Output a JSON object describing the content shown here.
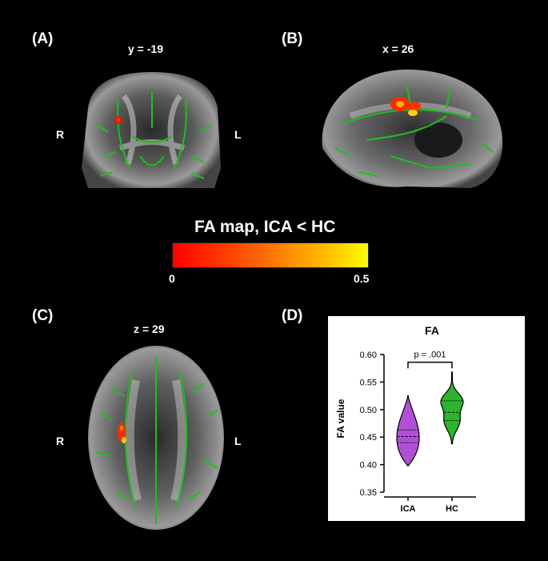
{
  "panels": {
    "a": {
      "label": "(A)",
      "slice": "y = -19",
      "left": "R",
      "right": "L"
    },
    "b": {
      "label": "(B)",
      "slice": "x = 26"
    },
    "c": {
      "label": "(C)",
      "slice": "z = 29",
      "left": "R",
      "right": "L"
    },
    "d": {
      "label": "(D)"
    }
  },
  "colorbar": {
    "title": "FA map, ICA < HC",
    "min": "0",
    "max": "0.5",
    "colors": [
      "#ff0000",
      "#ff5a00",
      "#ffc000",
      "#ffff00"
    ]
  },
  "colors": {
    "tract": "#19c219",
    "ica": "#b14fd8",
    "hc": "#2cb52c"
  },
  "chart_data": {
    "type": "violin",
    "title": "FA",
    "ylabel": "FA value",
    "xlabel": "",
    "categories": [
      "ICA",
      "HC"
    ],
    "ylim": [
      0.35,
      0.6
    ],
    "yticks": [
      "0.35",
      "0.40",
      "0.45",
      "0.50",
      "0.55",
      "0.60"
    ],
    "series": [
      {
        "category": "ICA",
        "min": 0.398,
        "max": 0.525,
        "q1": 0.44,
        "median": 0.451,
        "q3": 0.463
      },
      {
        "category": "HC",
        "min": 0.438,
        "max": 0.568,
        "q1": 0.48,
        "median": 0.495,
        "q3": 0.516
      }
    ],
    "annotation": "p = .001",
    "grid": false
  }
}
